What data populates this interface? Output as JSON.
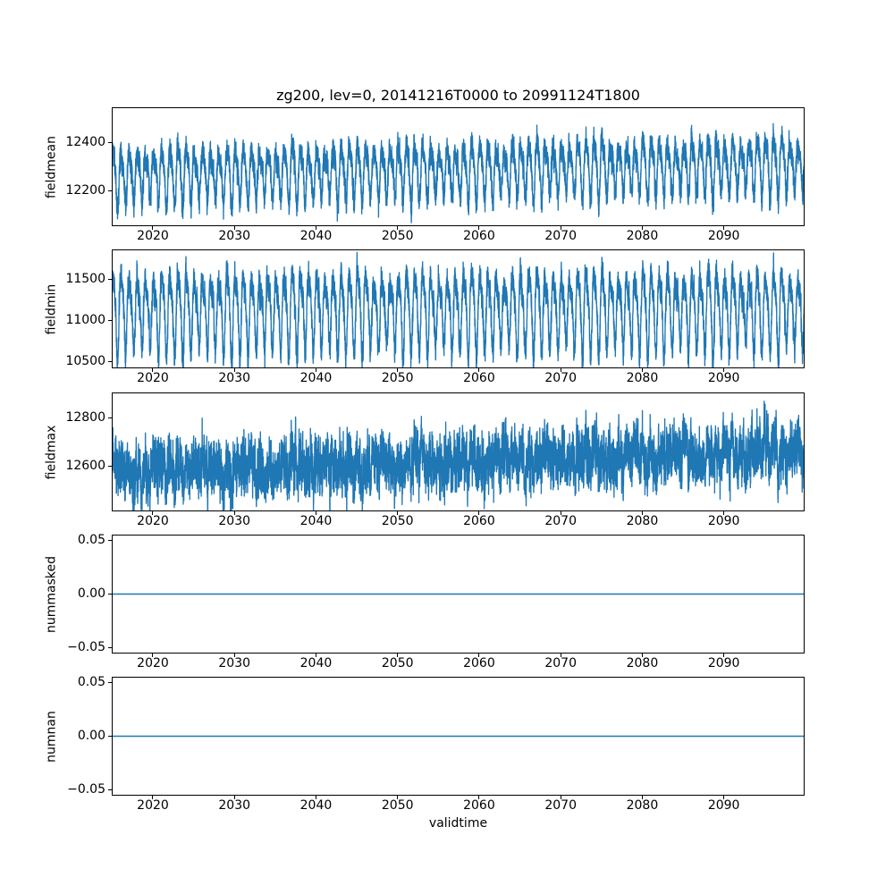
{
  "chart_data": {
    "type": "line",
    "title": "zg200, lev=0, 20141216T0000 to 20991124T1800",
    "xlabel": "validtime",
    "x_range": [
      2014.96,
      2099.9
    ],
    "x_ticks": [
      {
        "value": 2020,
        "label": "2020"
      },
      {
        "value": 2030,
        "label": "2030"
      },
      {
        "value": 2040,
        "label": "2040"
      },
      {
        "value": 2050,
        "label": "2050"
      },
      {
        "value": 2060,
        "label": "2060"
      },
      {
        "value": 2070,
        "label": "2070"
      },
      {
        "value": 2080,
        "label": "2080"
      },
      {
        "value": 2090,
        "label": "2090"
      }
    ],
    "line_color": "#1f77b4",
    "frame_color": "#000000",
    "grid": false,
    "legend": "none",
    "subplots": [
      {
        "name": "fieldmean",
        "ylabel": "fieldmean",
        "ylim": [
          12058,
          12542
        ],
        "yticks": [
          {
            "value": 12200,
            "label": "12200"
          },
          {
            "value": 12400,
            "label": "12400"
          }
        ],
        "series": {
          "kind": "seasonal_noise",
          "baseline_start": 12265,
          "baseline_end": 12310,
          "annual_amplitude": 95,
          "harmonic_amplitude": 30,
          "noise_sd": 26,
          "approx_min": 12080,
          "approx_max": 12520
        }
      },
      {
        "name": "fieldmin",
        "ylabel": "fieldmin",
        "ylim": [
          10414,
          11866
        ],
        "yticks": [
          {
            "value": 10500,
            "label": "10500"
          },
          {
            "value": 11000,
            "label": "11000"
          },
          {
            "value": 11500,
            "label": "11500"
          }
        ],
        "series": {
          "kind": "seasonal_noise",
          "baseline_start": 11120,
          "baseline_end": 11140,
          "annual_amplitude": 420,
          "harmonic_amplitude": 130,
          "noise_sd": 85,
          "approx_min": 10480,
          "approx_max": 11800
        }
      },
      {
        "name": "fieldmax",
        "ylabel": "fieldmax",
        "ylim": [
          12418,
          12902
        ],
        "yticks": [
          {
            "value": 12600,
            "label": "12600"
          },
          {
            "value": 12800,
            "label": "12800"
          }
        ],
        "series": {
          "kind": "noisy_trend",
          "baseline_start": 12575,
          "baseline_end": 12665,
          "annual_amplitude": 30,
          "harmonic_amplitude": 20,
          "noise_sd": 55,
          "approx_min": 12440,
          "approx_max": 12880
        }
      },
      {
        "name": "nummasked",
        "ylabel": "nummasked",
        "ylim": [
          -0.055,
          0.055
        ],
        "yticks": [
          {
            "value": -0.05,
            "label": "−0.05"
          },
          {
            "value": 0,
            "label": "0.00"
          },
          {
            "value": 0.05,
            "label": "0.05"
          }
        ],
        "series": {
          "kind": "constant",
          "value": 0
        }
      },
      {
        "name": "numnan",
        "ylabel": "numnan",
        "ylim": [
          -0.055,
          0.055
        ],
        "yticks": [
          {
            "value": -0.05,
            "label": "−0.05"
          },
          {
            "value": 0,
            "label": "0.00"
          },
          {
            "value": 0.05,
            "label": "0.05"
          }
        ],
        "series": {
          "kind": "constant",
          "value": 0
        }
      }
    ]
  }
}
